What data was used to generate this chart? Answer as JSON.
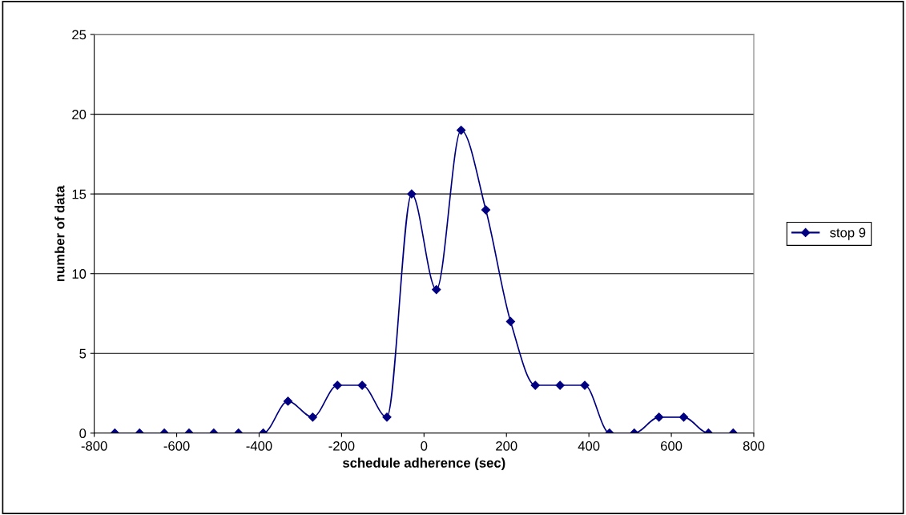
{
  "chart_data": {
    "type": "line",
    "xlabel": "schedule adherence (sec)",
    "ylabel": "number of data",
    "x": [
      -750,
      -690,
      -630,
      -570,
      -510,
      -450,
      -390,
      -330,
      -270,
      -210,
      -150,
      -90,
      -30,
      30,
      90,
      150,
      210,
      270,
      330,
      390,
      450,
      510,
      570,
      630,
      690,
      750
    ],
    "series": [
      {
        "name": "stop 9",
        "color": "#000080",
        "values": [
          0,
          0,
          0,
          0,
          0,
          0,
          0,
          2,
          1,
          3,
          3,
          1,
          15,
          9,
          19,
          14,
          7,
          3,
          3,
          3,
          0,
          0,
          1,
          1,
          0,
          0
        ]
      }
    ],
    "xlim": [
      -800,
      800
    ],
    "xticks": [
      -800,
      -600,
      -400,
      -200,
      0,
      200,
      400,
      600,
      800
    ],
    "ylim": [
      0,
      25
    ],
    "yticks": [
      0,
      5,
      10,
      15,
      20,
      25
    ],
    "grid": "y",
    "legend": "right",
    "marker": "diamond",
    "line_style": "solid"
  }
}
